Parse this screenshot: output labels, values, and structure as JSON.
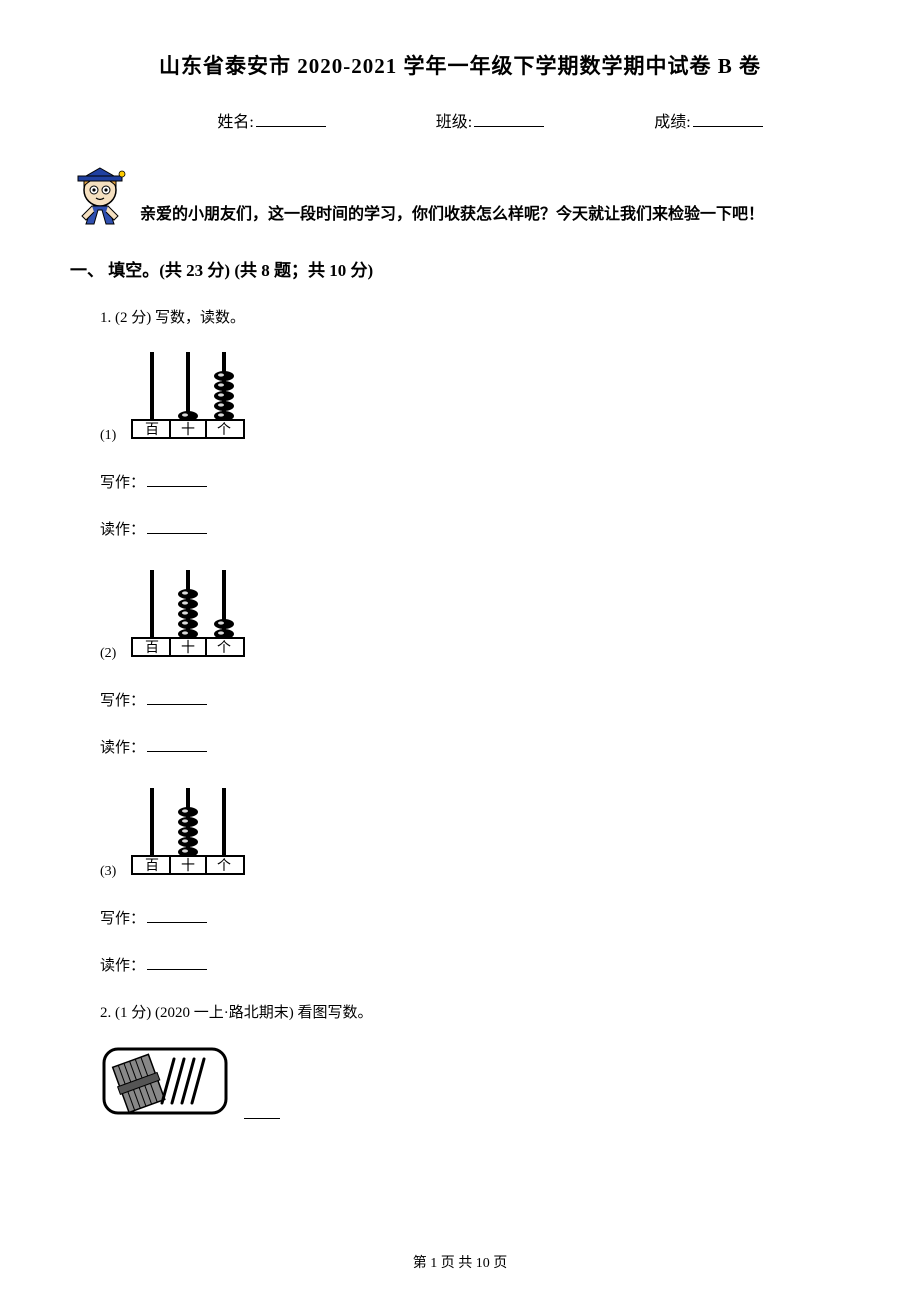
{
  "title": "山东省泰安市 2020-2021 学年一年级下学期数学期中试卷 B 卷",
  "info": {
    "name_label": "姓名:",
    "class_label": "班级:",
    "score_label": "成绩:"
  },
  "greeting": "亲爱的小朋友们，这一段时间的学习，你们收获怎么样呢？今天就让我们来检验一下吧！",
  "section1": {
    "header": "一、 填空。(共 23 分)  (共 8 题；共 10 分)"
  },
  "q1": {
    "head": "1.  (2 分)  写数，读数。",
    "subs": {
      "s1": "(1)",
      "s2": "(2)",
      "s3": "(3)"
    },
    "write_label": "写作：",
    "read_label": "读作：",
    "abacus": {
      "labels": {
        "bai": "百",
        "shi": "十",
        "ge": "个"
      },
      "a1": {
        "bai": 0,
        "shi": 1,
        "ge": 5
      },
      "a2": {
        "bai": 0,
        "shi": 5,
        "ge": 2
      },
      "a3": {
        "bai": 0,
        "shi": 5,
        "ge": 0
      }
    }
  },
  "q2": {
    "head": "2.  (1 分)  (2020 一上·路北期末)  看图写数。"
  },
  "footer": "第 1 页 共 10 页",
  "style": {
    "stroke": "#000000",
    "rod_width": 4,
    "bead_rx": 10,
    "bead_ry": 5
  }
}
